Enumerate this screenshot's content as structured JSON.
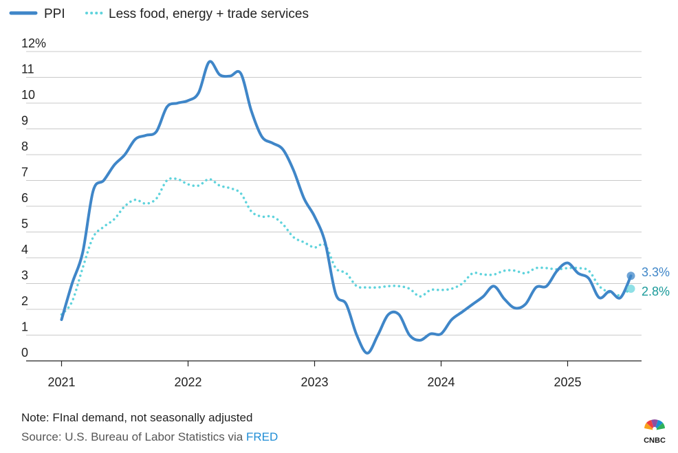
{
  "chart_data": {
    "type": "line",
    "ylim": [
      0,
      12
    ],
    "y_ticks": [
      "0",
      "1",
      "2",
      "3",
      "4",
      "5",
      "6",
      "7",
      "8",
      "9",
      "10",
      "11",
      "12%"
    ],
    "x_ticks": [
      "2021",
      "2022",
      "2023",
      "2024",
      "2025"
    ],
    "grid": true,
    "legend_position": "top-left",
    "series": [
      {
        "name": "PPI",
        "color": "#3f86c8",
        "style": "solid",
        "end_label": "3.3%",
        "points": [
          [
            2021.0,
            1.6
          ],
          [
            2021.083,
            3.0
          ],
          [
            2021.167,
            4.2
          ],
          [
            2021.25,
            6.6
          ],
          [
            2021.333,
            7.0
          ],
          [
            2021.417,
            7.6
          ],
          [
            2021.5,
            8.0
          ],
          [
            2021.583,
            8.6
          ],
          [
            2021.667,
            8.75
          ],
          [
            2021.75,
            8.9
          ],
          [
            2021.833,
            9.85
          ],
          [
            2021.917,
            10.0
          ],
          [
            2022.0,
            10.1
          ],
          [
            2022.083,
            10.4
          ],
          [
            2022.167,
            11.6
          ],
          [
            2022.25,
            11.1
          ],
          [
            2022.333,
            11.05
          ],
          [
            2022.417,
            11.15
          ],
          [
            2022.5,
            9.7
          ],
          [
            2022.583,
            8.7
          ],
          [
            2022.667,
            8.45
          ],
          [
            2022.75,
            8.2
          ],
          [
            2022.833,
            7.4
          ],
          [
            2022.917,
            6.3
          ],
          [
            2023.0,
            5.6
          ],
          [
            2023.083,
            4.6
          ],
          [
            2023.167,
            2.6
          ],
          [
            2023.25,
            2.2
          ],
          [
            2023.333,
            1.0
          ],
          [
            2023.417,
            0.3
          ],
          [
            2023.5,
            1.0
          ],
          [
            2023.583,
            1.8
          ],
          [
            2023.667,
            1.8
          ],
          [
            2023.75,
            1.0
          ],
          [
            2023.833,
            0.8
          ],
          [
            2023.917,
            1.05
          ],
          [
            2024.0,
            1.05
          ],
          [
            2024.083,
            1.6
          ],
          [
            2024.167,
            1.9
          ],
          [
            2024.25,
            2.2
          ],
          [
            2024.333,
            2.5
          ],
          [
            2024.417,
            2.9
          ],
          [
            2024.5,
            2.4
          ],
          [
            2024.583,
            2.05
          ],
          [
            2024.667,
            2.2
          ],
          [
            2024.75,
            2.85
          ],
          [
            2024.833,
            2.9
          ],
          [
            2024.917,
            3.5
          ],
          [
            2025.0,
            3.8
          ],
          [
            2025.083,
            3.4
          ],
          [
            2025.167,
            3.2
          ],
          [
            2025.25,
            2.45
          ],
          [
            2025.333,
            2.7
          ],
          [
            2025.417,
            2.45
          ],
          [
            2025.5,
            3.3
          ]
        ]
      },
      {
        "name": "Less food, energy + trade services",
        "color": "#5fd3dc",
        "style": "dotted",
        "end_label": "2.8%",
        "points": [
          [
            2021.0,
            1.8
          ],
          [
            2021.083,
            2.3
          ],
          [
            2021.167,
            3.6
          ],
          [
            2021.25,
            4.8
          ],
          [
            2021.333,
            5.2
          ],
          [
            2021.417,
            5.5
          ],
          [
            2021.5,
            6.0
          ],
          [
            2021.583,
            6.25
          ],
          [
            2021.667,
            6.1
          ],
          [
            2021.75,
            6.3
          ],
          [
            2021.833,
            7.0
          ],
          [
            2021.917,
            7.05
          ],
          [
            2022.0,
            6.85
          ],
          [
            2022.083,
            6.8
          ],
          [
            2022.167,
            7.05
          ],
          [
            2022.25,
            6.8
          ],
          [
            2022.333,
            6.7
          ],
          [
            2022.417,
            6.5
          ],
          [
            2022.5,
            5.8
          ],
          [
            2022.583,
            5.6
          ],
          [
            2022.667,
            5.6
          ],
          [
            2022.75,
            5.3
          ],
          [
            2022.833,
            4.8
          ],
          [
            2022.917,
            4.6
          ],
          [
            2023.0,
            4.4
          ],
          [
            2023.083,
            4.5
          ],
          [
            2023.167,
            3.6
          ],
          [
            2023.25,
            3.4
          ],
          [
            2023.333,
            2.9
          ],
          [
            2023.417,
            2.85
          ],
          [
            2023.5,
            2.85
          ],
          [
            2023.583,
            2.9
          ],
          [
            2023.667,
            2.9
          ],
          [
            2023.75,
            2.8
          ],
          [
            2023.833,
            2.5
          ],
          [
            2023.917,
            2.75
          ],
          [
            2024.0,
            2.75
          ],
          [
            2024.083,
            2.8
          ],
          [
            2024.167,
            3.0
          ],
          [
            2024.25,
            3.4
          ],
          [
            2024.333,
            3.35
          ],
          [
            2024.417,
            3.35
          ],
          [
            2024.5,
            3.5
          ],
          [
            2024.583,
            3.5
          ],
          [
            2024.667,
            3.4
          ],
          [
            2024.75,
            3.6
          ],
          [
            2024.833,
            3.6
          ],
          [
            2024.917,
            3.55
          ],
          [
            2025.0,
            3.6
          ],
          [
            2025.083,
            3.6
          ],
          [
            2025.167,
            3.5
          ],
          [
            2025.25,
            2.9
          ],
          [
            2025.333,
            2.65
          ],
          [
            2025.417,
            2.55
          ],
          [
            2025.5,
            2.8
          ]
        ]
      }
    ]
  },
  "footer": {
    "note": "Note: FInal demand, not seasonally adjusted",
    "source_prefix": "Source: U.S. Bureau of Labor Statistics via ",
    "source_link": "FRED",
    "logo_text": "CNBC"
  }
}
